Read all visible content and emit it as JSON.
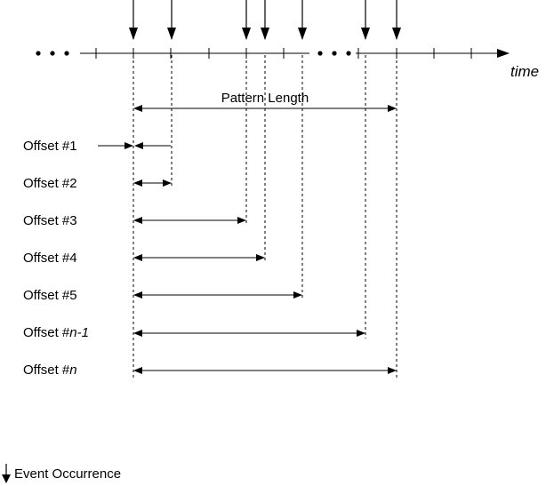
{
  "axis": {
    "label": "time"
  },
  "pattern_label": "Pattern Length",
  "offsets": [
    {
      "label": "Offset #1",
      "italic_suffix": ""
    },
    {
      "label": "Offset #2",
      "italic_suffix": ""
    },
    {
      "label": "Offset #3",
      "italic_suffix": ""
    },
    {
      "label": "Offset #4",
      "italic_suffix": ""
    },
    {
      "label": "Offset #5",
      "italic_suffix": ""
    },
    {
      "label": "Offset #",
      "italic_suffix": "n-1"
    },
    {
      "label": "Offset #",
      "italic_suffix": "n"
    }
  ],
  "legend": {
    "label": "Event Occurrence",
    "icon": "down-arrow-icon"
  }
}
